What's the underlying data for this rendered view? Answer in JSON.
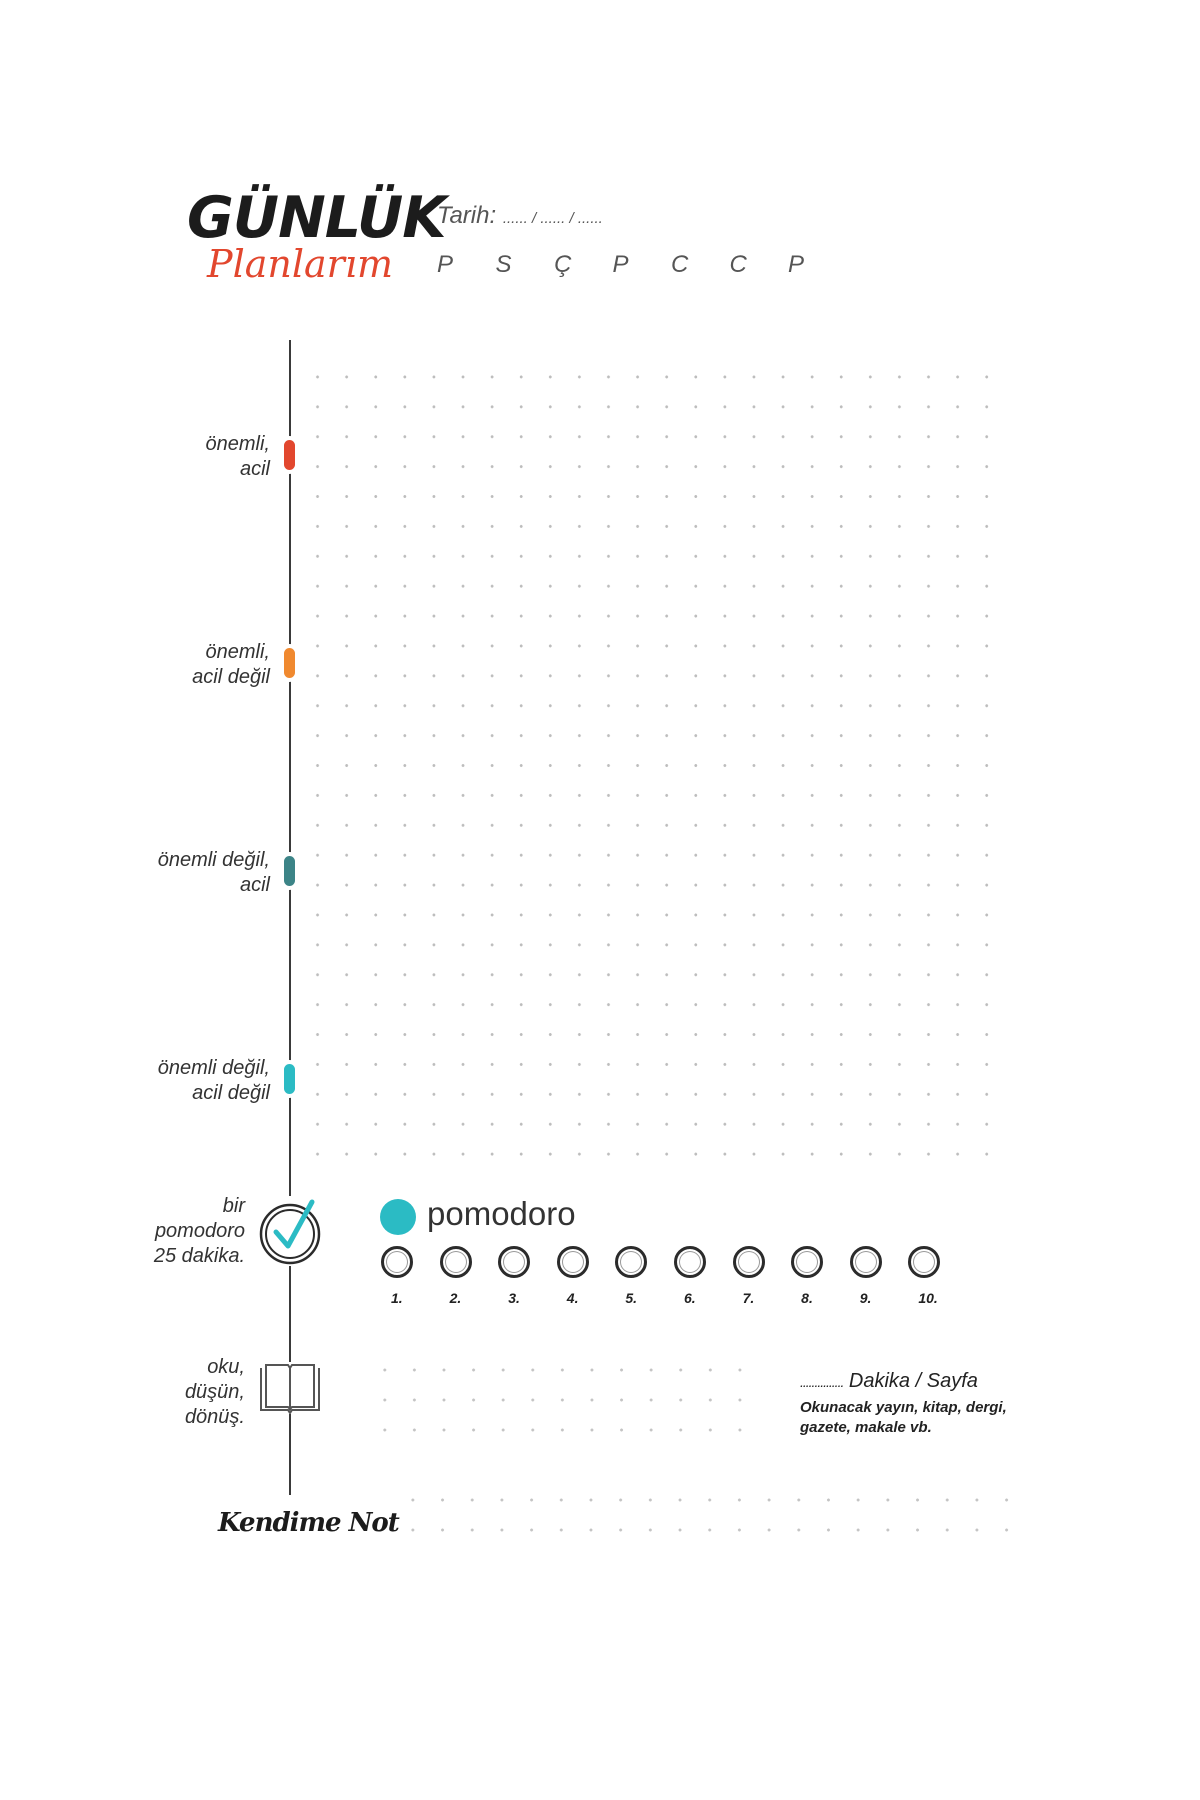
{
  "header": {
    "title": "GÜNLÜK",
    "subtitle": "Planlarım",
    "date_label": "Tarih:",
    "date_blank": "...... / ...... / ......",
    "days": [
      "P",
      "S",
      "Ç",
      "P",
      "C",
      "C",
      "P"
    ]
  },
  "categories": [
    {
      "label": "önemli,\nacil",
      "color": "#e2472e"
    },
    {
      "label": "önemli,\nacil değil",
      "color": "#f0892f"
    },
    {
      "label": "önemli değil,\nacil",
      "color": "#3c8487"
    },
    {
      "label": "önemli değil,\nacil değil",
      "color": "#2bbbc4"
    }
  ],
  "pomodoro": {
    "side_label_1": "bir",
    "side_label_2": "pomodoro",
    "side_label_3": "25 dakika.",
    "icon": "check-circle-icon",
    "title": "pomodoro",
    "dot_color": "#2bbbc4",
    "numbers": [
      "1.",
      "2.",
      "3.",
      "4.",
      "5.",
      "6.",
      "7.",
      "8.",
      "9.",
      "10."
    ]
  },
  "reading": {
    "side_label_1": "oku,",
    "side_label_2": "düşün,",
    "side_label_3": "dönüş.",
    "icon": "open-book-icon",
    "dakika_blank": "...............",
    "dakika_label": "Dakika / Sayfa",
    "note": "Okunacak yayın, kitap, dergi, gazete, makale vb."
  },
  "note": {
    "label": "Kendime Not"
  }
}
